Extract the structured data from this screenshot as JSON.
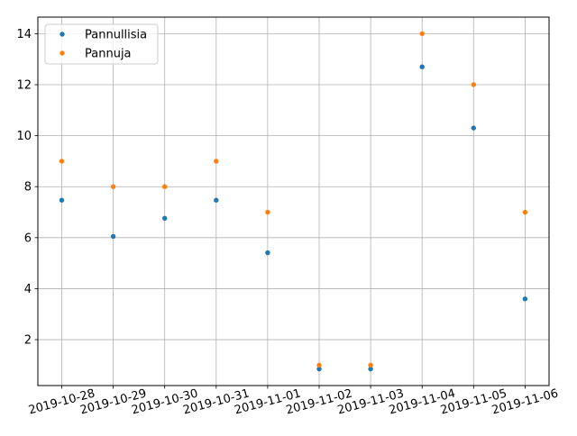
{
  "chart_data": {
    "type": "scatter",
    "title": "",
    "xlabel": "",
    "ylabel": "",
    "x": [
      "2019-10-28",
      "2019-10-29",
      "2019-10-30",
      "2019-10-31",
      "2019-11-01",
      "2019-11-02",
      "2019-11-03",
      "2019-11-04",
      "2019-11-05",
      "2019-11-06"
    ],
    "x_tick_labels": [
      "2019-10-28",
      "2019-10-29",
      "2019-10-30",
      "2019-10-31",
      "2019-11-01",
      "2019-11-02",
      "2019-11-03",
      "2019-11-04",
      "2019-11-05",
      "2019-11-06"
    ],
    "x_tick_rotation_deg": 15,
    "ylim": [
      0.2,
      14.65
    ],
    "y_ticks": [
      2,
      4,
      6,
      8,
      10,
      12,
      14
    ],
    "y_tick_labels": [
      "2",
      "4",
      "6",
      "8",
      "10",
      "12",
      "14"
    ],
    "grid": true,
    "legend_placement": "top-left",
    "series": [
      {
        "name": "Pannullisia",
        "color": "#1f77b4",
        "values": [
          7.47,
          6.05,
          6.76,
          7.47,
          5.41,
          0.85,
          0.85,
          12.7,
          10.3,
          3.6
        ]
      },
      {
        "name": "Pannuja",
        "color": "#ff7f0e",
        "values": [
          9,
          8,
          8,
          9,
          7,
          1,
          1,
          14,
          12,
          7
        ]
      }
    ]
  }
}
